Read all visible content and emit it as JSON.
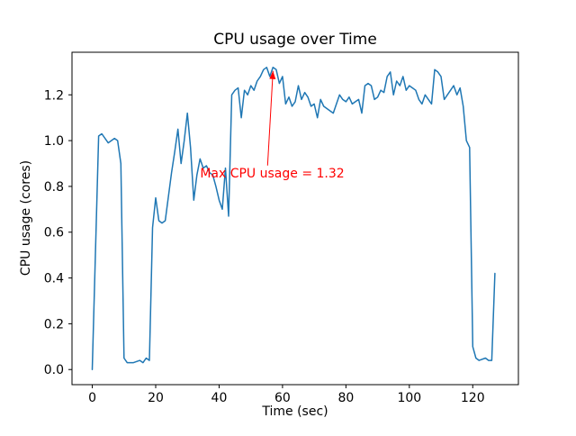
{
  "chart_data": {
    "type": "line",
    "title": "CPU usage over Time",
    "xlabel": "Time (sec)",
    "ylabel": "CPU usage (cores)",
    "xlim": [
      -6.4,
      134.4
    ],
    "ylim": [
      -0.066,
      1.386
    ],
    "grid": false,
    "legend": null,
    "line_color": "#1f77b4",
    "line_width": 1.5,
    "xticks": [
      {
        "v": 0,
        "label": "0"
      },
      {
        "v": 20,
        "label": "20"
      },
      {
        "v": 40,
        "label": "40"
      },
      {
        "v": 60,
        "label": "60"
      },
      {
        "v": 80,
        "label": "80"
      },
      {
        "v": 100,
        "label": "100"
      },
      {
        "v": 120,
        "label": "120"
      }
    ],
    "yticks": [
      {
        "v": 0.0,
        "label": "0.0"
      },
      {
        "v": 0.2,
        "label": "0.2"
      },
      {
        "v": 0.4,
        "label": "0.4"
      },
      {
        "v": 0.6,
        "label": "0.6"
      },
      {
        "v": 0.8,
        "label": "0.8"
      },
      {
        "v": 1.0,
        "label": "1.0"
      },
      {
        "v": 1.2,
        "label": "1.2"
      }
    ],
    "x": [
      0,
      2,
      3,
      5,
      7,
      8,
      9,
      10,
      11,
      13,
      15,
      16,
      17,
      18,
      19,
      20,
      21,
      22,
      23,
      25,
      26,
      27,
      28,
      29,
      30,
      31,
      32,
      33,
      34,
      35,
      36,
      37,
      38,
      39,
      40,
      41,
      42,
      43,
      44,
      45,
      46,
      47,
      48,
      49,
      50,
      51,
      52,
      53,
      54,
      55,
      56,
      57,
      58,
      59,
      60,
      61,
      62,
      63,
      64,
      65,
      66,
      67,
      68,
      69,
      70,
      71,
      72,
      73,
      74,
      75,
      76,
      77,
      78,
      79,
      80,
      81,
      82,
      83,
      84,
      85,
      86,
      87,
      88,
      89,
      90,
      91,
      92,
      93,
      94,
      95,
      96,
      97,
      98,
      99,
      100,
      101,
      102,
      103,
      104,
      105,
      106,
      107,
      108,
      109,
      110,
      111,
      112,
      113,
      114,
      115,
      116,
      117,
      118,
      119,
      120,
      121,
      122,
      124,
      125,
      126,
      127
    ],
    "y": [
      0.0,
      1.02,
      1.03,
      0.99,
      1.01,
      1.0,
      0.9,
      0.05,
      0.03,
      0.03,
      0.04,
      0.03,
      0.05,
      0.04,
      0.62,
      0.75,
      0.65,
      0.64,
      0.65,
      0.86,
      0.95,
      1.05,
      0.9,
      1.0,
      1.12,
      0.97,
      0.74,
      0.85,
      0.92,
      0.88,
      0.89,
      0.86,
      0.85,
      0.8,
      0.74,
      0.7,
      0.88,
      0.67,
      1.2,
      1.22,
      1.23,
      1.1,
      1.22,
      1.2,
      1.24,
      1.22,
      1.26,
      1.28,
      1.31,
      1.32,
      1.28,
      1.32,
      1.31,
      1.25,
      1.28,
      1.16,
      1.19,
      1.15,
      1.17,
      1.24,
      1.18,
      1.21,
      1.19,
      1.15,
      1.16,
      1.1,
      1.18,
      1.15,
      1.14,
      1.13,
      1.12,
      1.16,
      1.2,
      1.18,
      1.17,
      1.19,
      1.16,
      1.17,
      1.18,
      1.12,
      1.24,
      1.25,
      1.24,
      1.18,
      1.19,
      1.22,
      1.21,
      1.28,
      1.3,
      1.2,
      1.26,
      1.24,
      1.28,
      1.22,
      1.24,
      1.23,
      1.22,
      1.18,
      1.16,
      1.2,
      1.18,
      1.16,
      1.31,
      1.3,
      1.28,
      1.18,
      1.2,
      1.22,
      1.24,
      1.2,
      1.23,
      1.15,
      1.0,
      0.97,
      0.1,
      0.05,
      0.04,
      0.05,
      0.04,
      0.04,
      0.42
    ],
    "annotation": {
      "text": "Max CPU usage = 1.32",
      "xy": [
        57,
        1.32
      ],
      "xytext": [
        34,
        0.84
      ],
      "color": "#ff0000"
    }
  }
}
